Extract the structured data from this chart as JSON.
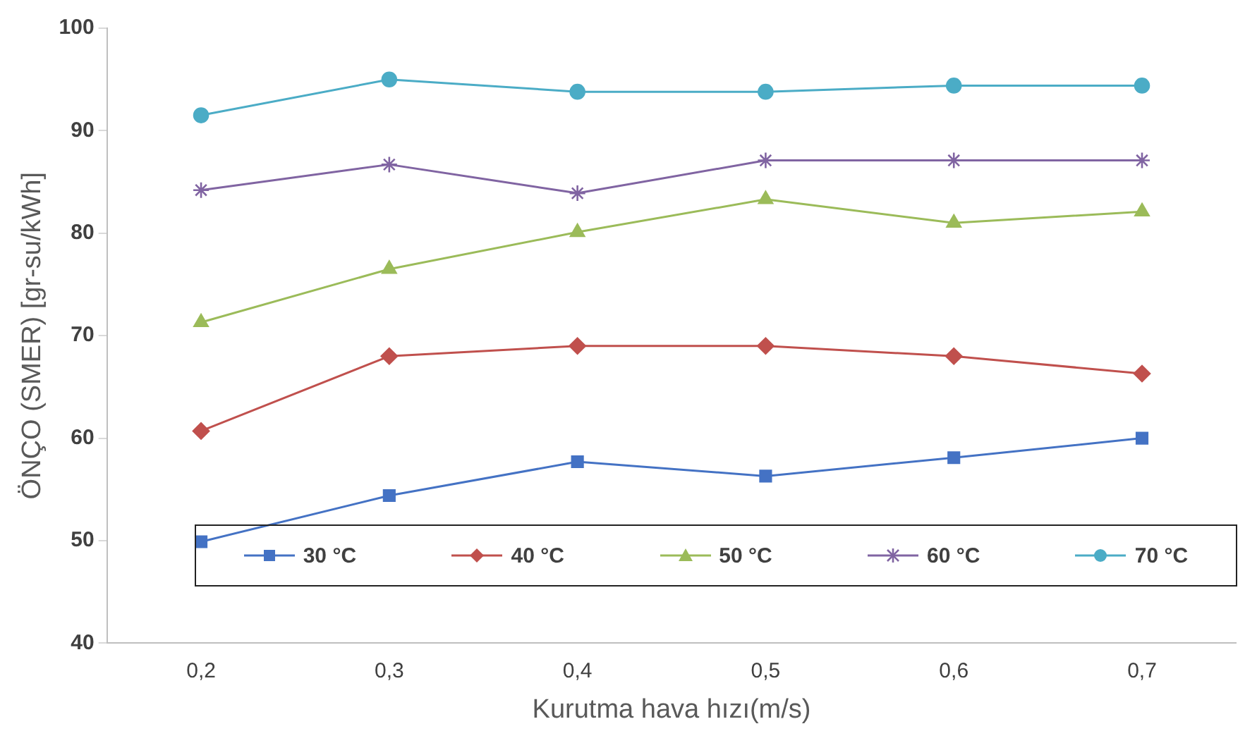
{
  "chart_data": {
    "type": "line",
    "xlabel": "Kurutma hava hızı(m/s)",
    "ylabel": "ÖNÇO (SMER) [gr-su/kWh]",
    "categories": [
      "0,2",
      "0,3",
      "0,4",
      "0,5",
      "0,6",
      "0,7"
    ],
    "ylim": [
      40,
      100
    ],
    "yticks": [
      40,
      50,
      60,
      70,
      80,
      90,
      100
    ],
    "grid": false,
    "legend": "bottom",
    "series": [
      {
        "name": "30 °C",
        "color": "#4472c4",
        "marker": "square",
        "values": [
          49.9,
          54.4,
          57.7,
          56.3,
          58.1,
          60
        ]
      },
      {
        "name": "40 °C",
        "color": "#c0504d",
        "marker": "diamond",
        "values": [
          60.7,
          68,
          69,
          69,
          68,
          66.3
        ]
      },
      {
        "name": "50 °C",
        "color": "#9bbb59",
        "marker": "triangle",
        "values": [
          71.3,
          76.5,
          80.1,
          83.3,
          81,
          82.1
        ]
      },
      {
        "name": "60 °C",
        "color": "#8064a2",
        "marker": "cross",
        "values": [
          84.2,
          86.7,
          83.9,
          87.1,
          87.1,
          87.1
        ]
      },
      {
        "name": "70 °C",
        "color": "#4bacc6",
        "marker": "circle",
        "values": [
          91.5,
          95,
          93.8,
          93.8,
          94.4,
          94.4
        ]
      }
    ]
  }
}
